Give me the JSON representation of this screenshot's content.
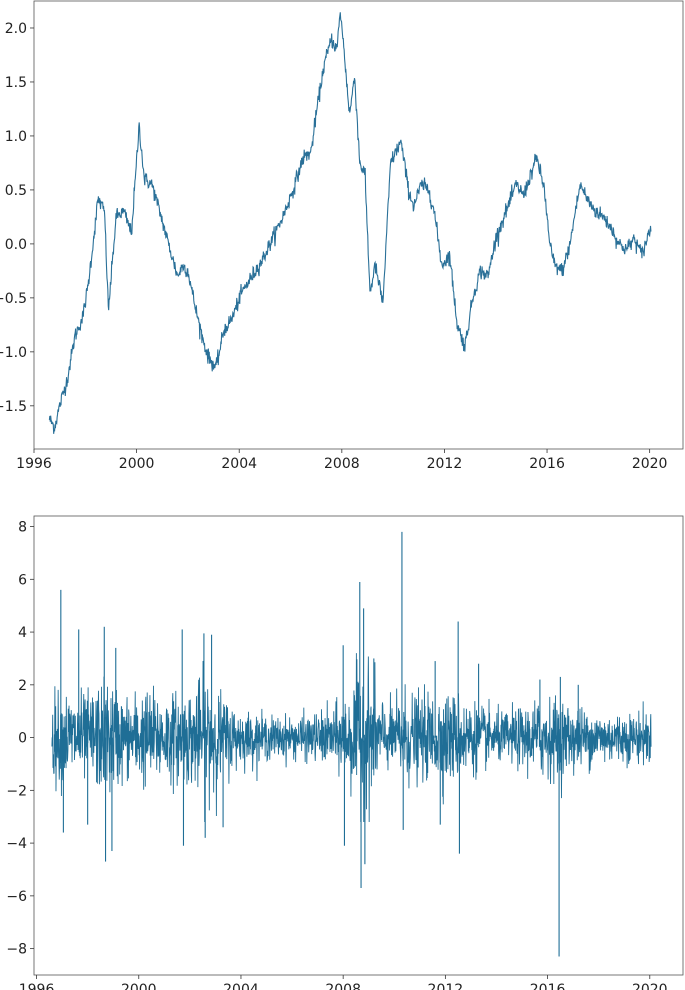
{
  "chart_data": [
    {
      "type": "line",
      "title": "",
      "xlabel": "",
      "ylabel": "",
      "xlim": [
        1996.0,
        2021.3
      ],
      "ylim": [
        -1.9,
        2.25
      ],
      "xticks": [
        1996,
        2000,
        2004,
        2008,
        2012,
        2016,
        2020
      ],
      "xtick_labels": [
        "1996",
        "2000",
        "2004",
        "2008",
        "2012",
        "2016",
        "2020"
      ],
      "yticks": [
        -1.5,
        -1.0,
        -0.5,
        0.0,
        0.5,
        1.0,
        1.5,
        2.0
      ],
      "ytick_labels": [
        "−1.5",
        "−1.0",
        "−0.5",
        "0.0",
        "0.5",
        "1.0",
        "1.5",
        "2.0"
      ],
      "grid": false,
      "color": "#2a7098",
      "series": [
        {
          "x": [
            1996.6,
            1996.8,
            1997.0,
            1997.3,
            1997.6,
            1997.9,
            1998.1,
            1998.3,
            1998.5,
            1998.75,
            1998.9,
            1999.2,
            1999.5,
            1999.8,
            2000.1,
            2000.3,
            2000.6,
            2000.9,
            2001.3,
            2001.6,
            2001.8,
            2002.0,
            2002.3,
            2002.6,
            2002.8,
            2003.1,
            2003.4,
            2003.7,
            2004.1,
            2004.5,
            2004.9,
            2005.3,
            2005.7,
            2006.1,
            2006.5,
            2006.8,
            2007.0,
            2007.3,
            2007.6,
            2007.8,
            2007.95,
            2008.1,
            2008.3,
            2008.5,
            2008.7,
            2008.9,
            2009.1,
            2009.3,
            2009.6,
            2009.9,
            2010.3,
            2010.6,
            2010.8,
            2011.1,
            2011.4,
            2011.6,
            2011.9,
            2012.2,
            2012.5,
            2012.8,
            2013.1,
            2013.4,
            2013.7,
            2014.0,
            2014.4,
            2014.8,
            2015.1,
            2015.3,
            2015.6,
            2015.9,
            2016.1,
            2016.3,
            2016.6,
            2016.9,
            2017.1,
            2017.3,
            2017.6,
            2017.9,
            2018.2,
            2018.5,
            2018.8,
            2019.1,
            2019.4,
            2019.7,
            2019.9,
            2020.05
          ],
          "y": [
            -1.62,
            -1.7,
            -1.5,
            -1.25,
            -0.85,
            -0.68,
            -0.4,
            0.0,
            0.42,
            0.3,
            -0.62,
            0.25,
            0.3,
            0.1,
            1.1,
            0.6,
            0.55,
            0.3,
            -0.05,
            -0.3,
            -0.2,
            -0.25,
            -0.6,
            -0.9,
            -1.05,
            -1.15,
            -0.8,
            -0.7,
            -0.45,
            -0.3,
            -0.15,
            0.05,
            0.25,
            0.5,
            0.8,
            0.85,
            1.2,
            1.65,
            1.9,
            1.8,
            2.15,
            1.75,
            1.2,
            1.55,
            0.75,
            0.65,
            -0.45,
            -0.2,
            -0.55,
            0.75,
            0.95,
            0.5,
            0.35,
            0.55,
            0.5,
            0.3,
            -0.2,
            -0.1,
            -0.75,
            -0.95,
            -0.5,
            -0.25,
            -0.3,
            0.05,
            0.3,
            0.55,
            0.45,
            0.6,
            0.8,
            0.5,
            0.0,
            -0.2,
            -0.25,
            0.0,
            0.3,
            0.55,
            0.4,
            0.3,
            0.25,
            0.15,
            0.0,
            -0.05,
            0.05,
            -0.1,
            0.05,
            0.15
          ]
        }
      ]
    },
    {
      "type": "line",
      "title": "",
      "xlabel": "",
      "ylabel": "",
      "xlim": [
        1995.9,
        2021.3
      ],
      "ylim": [
        -9.0,
        8.4
      ],
      "xticks": [
        1996,
        2000,
        2004,
        2008,
        2012,
        2016,
        2020
      ],
      "xtick_labels": [
        "1996",
        "2000",
        "2004",
        "2008",
        "2012",
        "2016",
        "2020"
      ],
      "yticks": [
        -8,
        -6,
        -4,
        -2,
        0,
        2,
        4,
        6,
        8
      ],
      "ytick_labels": [
        "−8",
        "−6",
        "−4",
        "−2",
        "0",
        "2",
        "4",
        "6",
        "8"
      ],
      "grid": false,
      "color": "#1f6e96",
      "x_start": 1996.6,
      "x_end": 2020.05,
      "volatility_envelope": {
        "x": [
          1996.6,
          1997.0,
          1998.0,
          1998.8,
          1999.5,
          2000.3,
          2001.0,
          2002.0,
          2002.7,
          2003.3,
          2004.0,
          2005.0,
          2006.0,
          2007.0,
          2007.8,
          2008.3,
          2008.8,
          2009.3,
          2009.8,
          2010.4,
          2011.0,
          2011.8,
          2012.5,
          2013.3,
          2014.0,
          2015.0,
          2015.8,
          2016.5,
          2017.3,
          2018.0,
          2019.0,
          2020.05
        ],
        "sd": [
          0.8,
          0.85,
          0.8,
          1.1,
          0.75,
          0.9,
          0.8,
          0.85,
          1.2,
          0.75,
          0.5,
          0.4,
          0.38,
          0.45,
          0.6,
          0.9,
          1.6,
          0.9,
          0.55,
          0.9,
          0.75,
          0.85,
          0.8,
          0.6,
          0.45,
          0.55,
          0.75,
          0.7,
          0.55,
          0.5,
          0.45,
          0.5
        ]
      },
      "spikes": [
        {
          "x": 1996.95,
          "y": 5.6
        },
        {
          "x": 1997.05,
          "y": -3.6
        },
        {
          "x": 1997.65,
          "y": 4.1
        },
        {
          "x": 1998.0,
          "y": -3.3
        },
        {
          "x": 1998.65,
          "y": 4.2
        },
        {
          "x": 1998.7,
          "y": -4.7
        },
        {
          "x": 1998.95,
          "y": -4.3
        },
        {
          "x": 1999.1,
          "y": 3.4
        },
        {
          "x": 2001.7,
          "y": 4.1
        },
        {
          "x": 2001.75,
          "y": -4.1
        },
        {
          "x": 2002.55,
          "y": 3.95
        },
        {
          "x": 2002.6,
          "y": -3.8
        },
        {
          "x": 2002.85,
          "y": 3.9
        },
        {
          "x": 2003.3,
          "y": -3.4
        },
        {
          "x": 2008.0,
          "y": 3.5
        },
        {
          "x": 2008.05,
          "y": -4.1
        },
        {
          "x": 2008.65,
          "y": 5.9
        },
        {
          "x": 2008.7,
          "y": -5.7
        },
        {
          "x": 2008.8,
          "y": 4.9
        },
        {
          "x": 2008.85,
          "y": -4.8
        },
        {
          "x": 2009.2,
          "y": 3.0
        },
        {
          "x": 2010.3,
          "y": 7.8
        },
        {
          "x": 2010.35,
          "y": -3.5
        },
        {
          "x": 2011.6,
          "y": 2.9
        },
        {
          "x": 2011.8,
          "y": -3.3
        },
        {
          "x": 2012.5,
          "y": 4.4
        },
        {
          "x": 2012.55,
          "y": -4.4
        },
        {
          "x": 2013.3,
          "y": 2.8
        },
        {
          "x": 2016.45,
          "y": -8.3
        },
        {
          "x": 2016.5,
          "y": 2.3
        },
        {
          "x": 2015.7,
          "y": 2.2
        },
        {
          "x": 2017.2,
          "y": 2.0
        }
      ]
    }
  ]
}
